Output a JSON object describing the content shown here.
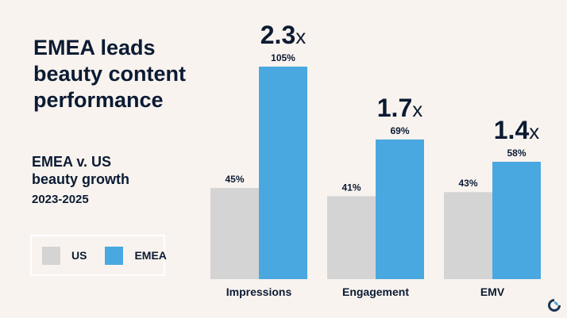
{
  "headline": [
    "EMEA leads",
    "beauty content",
    "performance"
  ],
  "subtitle": {
    "line1": "EMEA v. US",
    "line2": "beauty growth",
    "years": "2023-2025"
  },
  "colors": {
    "us": "#d4d4d4",
    "emea": "#4aa8e0",
    "text": "#0b1b33",
    "background": "#f9f3ef"
  },
  "chart_data": {
    "type": "bar",
    "categories": [
      "Impressions",
      "Engagement",
      "EMV"
    ],
    "series": [
      {
        "name": "US",
        "values": [
          45,
          41,
          43
        ],
        "labels": [
          "45%",
          "41%",
          "43%"
        ]
      },
      {
        "name": "EMEA",
        "values": [
          105,
          69,
          58
        ],
        "labels": [
          "105%",
          "69%",
          "58%"
        ]
      }
    ],
    "multipliers": [
      {
        "number": "2.3",
        "suffix": "x"
      },
      {
        "number": "1.7",
        "suffix": "x"
      },
      {
        "number": "1.4",
        "suffix": "x"
      }
    ],
    "legend_position": "bottom-left",
    "grid": false,
    "ylim": [
      0,
      105
    ]
  }
}
